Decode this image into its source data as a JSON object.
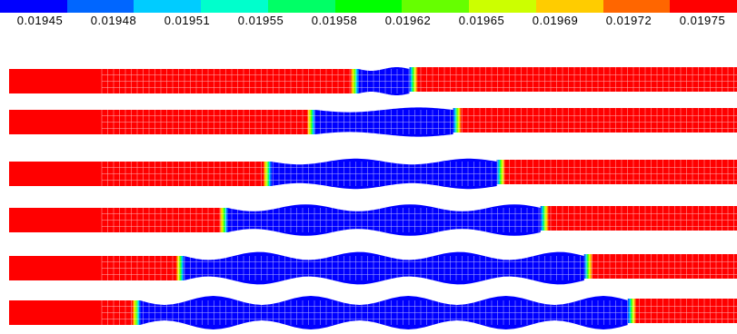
{
  "legend": {
    "colors": [
      "#0000ff",
      "#0066ff",
      "#00ccff",
      "#00ffcc",
      "#00ff66",
      "#00ff00",
      "#66ff00",
      "#ccff00",
      "#ffcc00",
      "#ff6600",
      "#ff0000"
    ],
    "ticks": [
      "0.01945",
      "0.01948",
      "0.01951",
      "0.01955",
      "0.01958",
      "0.01962",
      "0.01965",
      "0.01969",
      "0.01972",
      "0.01975"
    ]
  },
  "field_colors": {
    "high": "#ff0000",
    "low": "#0000ff",
    "mesh_line": "#ffffff"
  },
  "frames": [
    {
      "low_from": 0.48,
      "low_to": 0.55
    },
    {
      "low_from": 0.42,
      "low_to": 0.61
    },
    {
      "low_from": 0.36,
      "low_to": 0.67
    },
    {
      "low_from": 0.3,
      "low_to": 0.73
    },
    {
      "low_from": 0.24,
      "low_to": 0.79
    },
    {
      "low_from": 0.18,
      "low_to": 0.85
    }
  ]
}
